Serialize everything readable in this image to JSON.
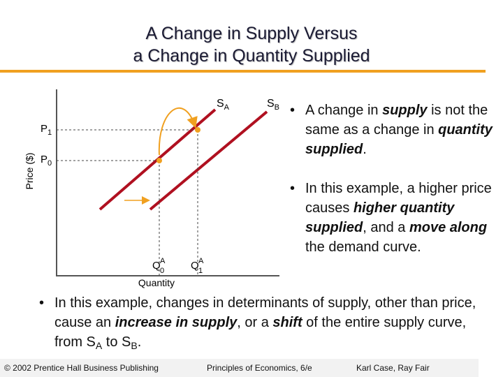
{
  "header": {
    "title_lines": [
      "A Change in Supply Versus",
      "a Change in Quantity Supplied"
    ]
  },
  "diagram": {
    "y_axis_label": "Price ($)",
    "x_axis_label": "Quantity",
    "curve_a": {
      "base": "S",
      "sub": "A"
    },
    "curve_b": {
      "base": "S",
      "sub": "B"
    },
    "p1": {
      "base": "P",
      "sub": "1"
    },
    "p0": {
      "base": "P",
      "sub": "0"
    },
    "q0": {
      "base": "Q",
      "sub": "0",
      "sup": "A"
    },
    "q1": {
      "base": "Q",
      "sub": "1",
      "sup": "A"
    }
  },
  "bullets": [
    [
      "A change in ",
      "supply",
      " is not the same as a change in ",
      "quantity supplied",
      "."
    ],
    [
      "In this example, a higher price causes ",
      "higher quantity supplied",
      ", and a ",
      "move along",
      " the demand curve."
    ],
    [
      "In this example, changes in determinants of supply, other than price, cause an ",
      "increase in supply",
      ", or a ",
      "shift",
      " of the entire supply curve, from S",
      "A",
      " to S",
      "B",
      "."
    ]
  ],
  "footer": {
    "left": "© 2002 Prentice Hall Business Publishing",
    "center": "Principles of Economics, 6/e",
    "right": "Karl Case, Ray Fair"
  }
}
